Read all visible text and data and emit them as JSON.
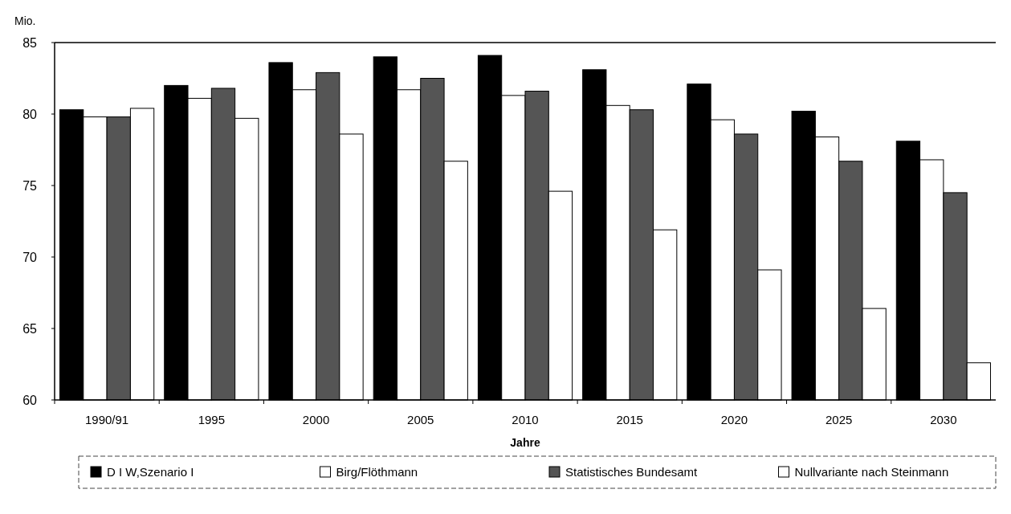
{
  "chart_data": {
    "type": "bar",
    "ylabel": "Mio.",
    "xlabel": "Jahre",
    "categories": [
      "1990/91",
      "1995",
      "2000",
      "2005",
      "2010",
      "2015",
      "2020",
      "2025",
      "2030"
    ],
    "series": [
      {
        "name": "D I W,Szenario I",
        "color": "#000000",
        "values": [
          80.3,
          82.0,
          83.6,
          84.0,
          84.1,
          83.1,
          82.1,
          80.2,
          78.1
        ]
      },
      {
        "name": "Birg/Flöthmann",
        "color": "#ffffff",
        "values": [
          79.8,
          81.1,
          81.7,
          81.7,
          81.3,
          80.6,
          79.6,
          78.4,
          76.8
        ]
      },
      {
        "name": "Statistisches Bundesamt",
        "color": "#555555",
        "values": [
          79.8,
          81.8,
          82.9,
          82.5,
          81.6,
          80.3,
          78.6,
          76.7,
          74.5
        ]
      },
      {
        "name": "Nullvariante nach Steinmann",
        "color": "#ffffff",
        "values": [
          80.4,
          79.7,
          78.6,
          76.7,
          74.6,
          71.9,
          69.1,
          66.4,
          62.6
        ]
      }
    ],
    "ylim": [
      60,
      85
    ],
    "yticks": [
      60,
      65,
      70,
      75,
      80,
      85
    ],
    "grid": false,
    "legend": "bottom"
  }
}
